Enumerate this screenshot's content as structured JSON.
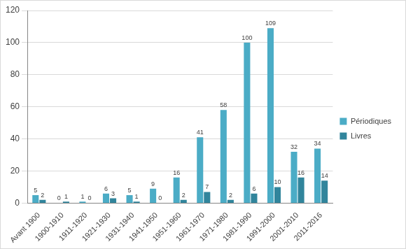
{
  "chart_data": {
    "type": "bar",
    "categories": [
      "Avant 1900",
      "1900-1910",
      "1911-1920",
      "1921-1930",
      "1931-1940",
      "1941-1950",
      "1951-1960",
      "1961-1970",
      "1971-1980",
      "1981-1990",
      "1991-2000",
      "2001-2010",
      "2011-2016"
    ],
    "series": [
      {
        "name": "Périodiques",
        "color": "#4bacc6",
        "values": [
          5,
          0,
          1,
          6,
          5,
          9,
          16,
          41,
          58,
          100,
          109,
          32,
          34
        ]
      },
      {
        "name": "Livres",
        "color": "#31859c",
        "values": [
          2,
          1,
          0,
          3,
          1,
          0,
          2,
          7,
          2,
          6,
          10,
          16,
          14
        ]
      }
    ],
    "ylim": [
      0,
      120
    ],
    "yticks": [
      0,
      20,
      40,
      60,
      80,
      100,
      120
    ],
    "grid": true,
    "legend": "right",
    "data_labels": true
  }
}
